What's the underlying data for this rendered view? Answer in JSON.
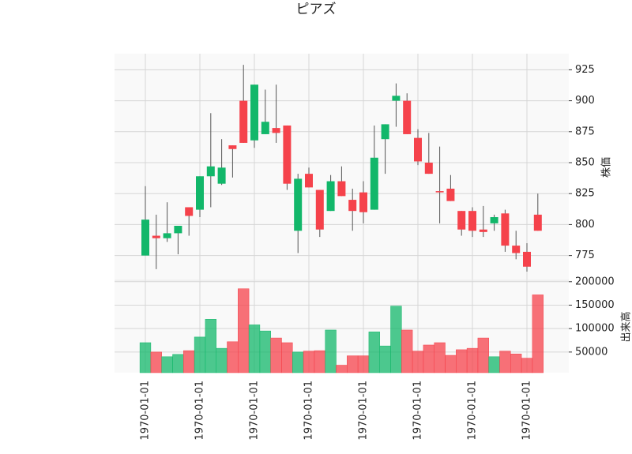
{
  "chart_data": {
    "type": "candlestick",
    "title": "ピアズ",
    "ylabel": "株価",
    "volume_label": "出来高",
    "categories": [
      "1970-01-01",
      null,
      null,
      null,
      null,
      "1970-01-01",
      null,
      null,
      null,
      null,
      "1970-01-01",
      null,
      null,
      null,
      null,
      "1970-01-01",
      null,
      null,
      null,
      null,
      "1970-01-01",
      null,
      null,
      null,
      null,
      "1970-01-01",
      null,
      null,
      null,
      null,
      "1970-01-01",
      null,
      null,
      null,
      null,
      "1970-01-01",
      null
    ],
    "open": [
      775,
      791,
      789,
      793,
      814,
      812,
      839,
      833,
      864,
      900,
      868,
      873,
      878,
      880,
      795,
      841,
      828,
      811,
      835,
      820,
      826,
      812,
      869,
      900,
      900,
      870,
      850,
      827,
      829,
      811,
      811,
      796,
      801,
      809,
      783,
      778,
      808
    ],
    "high": [
      831,
      808,
      818,
      799,
      814,
      839,
      890,
      869,
      864,
      929,
      913,
      909,
      913,
      880,
      841,
      846,
      828,
      840,
      847,
      829,
      835,
      880,
      881,
      914,
      906,
      877,
      874,
      863,
      840,
      811,
      814,
      815,
      808,
      812,
      795,
      785,
      825
    ],
    "low": [
      775,
      764,
      786,
      776,
      791,
      806,
      814,
      832,
      838,
      866,
      862,
      873,
      866,
      828,
      777,
      830,
      790,
      811,
      823,
      795,
      801,
      812,
      841,
      879,
      873,
      848,
      841,
      801,
      819,
      791,
      790,
      790,
      795,
      778,
      772,
      762,
      795
    ],
    "close": [
      804,
      789,
      793,
      799,
      807,
      839,
      847,
      846,
      861,
      866,
      913,
      883,
      874,
      833,
      837,
      830,
      796,
      835,
      823,
      811,
      810,
      854,
      881,
      904,
      873,
      851,
      841,
      826,
      819,
      796,
      795,
      794,
      806,
      783,
      777,
      766,
      795
    ],
    "volume": [
      70000,
      50000,
      40000,
      45000,
      53000,
      82000,
      120000,
      58000,
      72000,
      185000,
      108000,
      95000,
      80000,
      70000,
      50000,
      52000,
      53000,
      97000,
      22000,
      42000,
      42000,
      93000,
      63000,
      148000,
      97000,
      52000,
      65000,
      70000,
      43000,
      55000,
      58000,
      80000,
      40000,
      52000,
      46000,
      37000,
      172000
    ],
    "up_color": "#12b76a",
    "down_color": "#f5424b",
    "wick_color": "#555555",
    "ylim": [
      755,
      938
    ],
    "yticks": [
      775,
      800,
      825,
      850,
      875,
      900,
      925
    ],
    "volume_ylim": [
      6000,
      203000
    ],
    "volume_yticks": [
      50000,
      100000,
      150000,
      200000
    ],
    "grid": true
  }
}
